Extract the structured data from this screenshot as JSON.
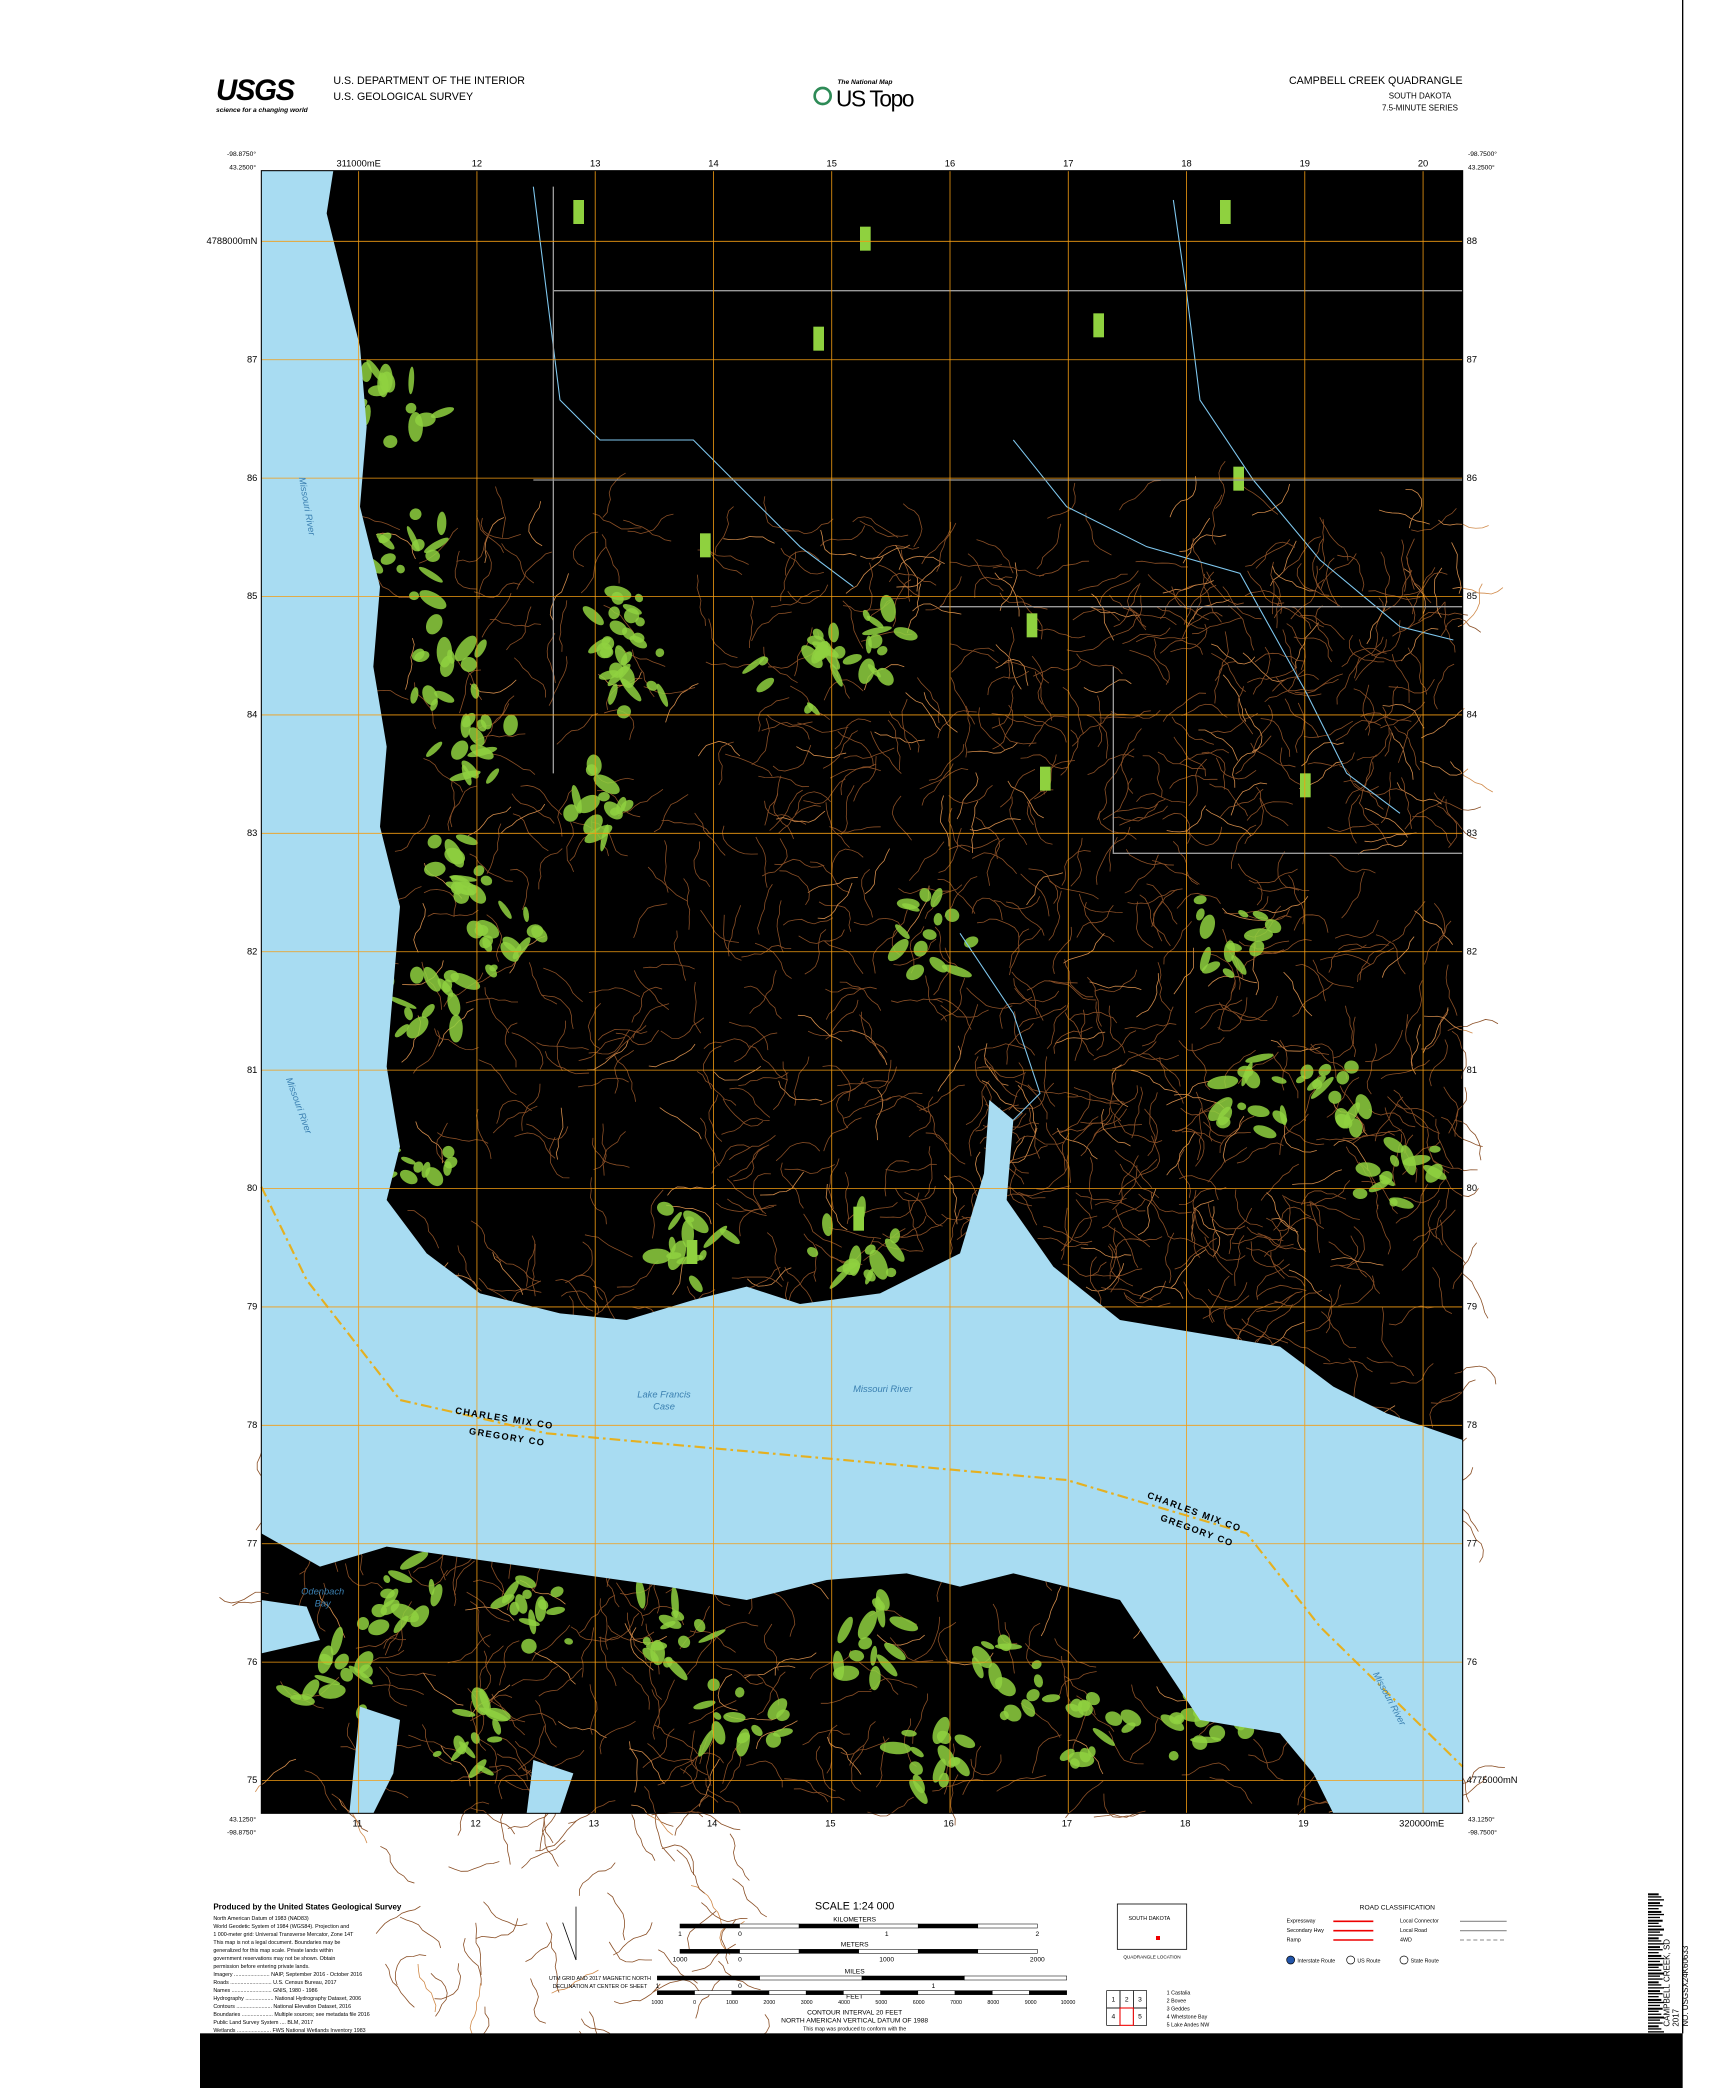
{
  "header": {
    "agency_logo": "USGS",
    "agency_tagline": "science for a changing world",
    "department": "U.S. DEPARTMENT OF THE INTERIOR",
    "survey": "U.S. GEOLOGICAL SURVEY",
    "product_kicker": "The National Map",
    "product": "US Topo",
    "quadrangle": "CAMPBELL CREEK QUADRANGLE",
    "state": "SOUTH DAKOTA",
    "series": "7.5-MINUTE SERIES"
  },
  "corners": {
    "nw_lon": "-98.8750°",
    "nw_lat": "43.2500°",
    "ne_lon": "-98.7500°",
    "ne_lat": "43.2500°",
    "sw_lon": "-98.8750°",
    "sw_lat": "43.1250°",
    "se_lon": "-98.7500°",
    "se_lat": "43.1250°"
  },
  "grid": {
    "top_eastings": [
      "311000mE",
      "12",
      "13",
      "14",
      "15",
      "16",
      "17",
      "18",
      "19",
      "20"
    ],
    "bottom_eastings": [
      "11",
      "12",
      "13",
      "14",
      "15",
      "16",
      "17",
      "18",
      "19",
      "320000mE"
    ],
    "left_northings": [
      "4788000mN",
      "87",
      "86",
      "85",
      "84",
      "83",
      "82",
      "81",
      "80",
      "79",
      "78",
      "77",
      "76",
      "75"
    ],
    "right_northings": [
      "88",
      "87",
      "86",
      "85",
      "84",
      "83",
      "82",
      "81",
      "80",
      "79",
      "78",
      "77",
      "76",
      "4775000mN"
    ]
  },
  "labels": {
    "river_north": "Missouri River",
    "river_west": "Missouri River",
    "lake": [
      "Lake Francis",
      "Case"
    ],
    "river_lake": "Missouri River",
    "county_north_west": "CHARLES MIX CO",
    "county_south_west": "GREGORY CO",
    "county_north_east": "CHARLES MIX CO",
    "county_south_east": "GREGORY CO",
    "bay": [
      "Odenbach",
      "Bay"
    ],
    "river_east": "Missouri River"
  },
  "footer": {
    "producer": "Produced by the United States Geological Survey",
    "credits": [
      "North American Datum of 1983 (NAD83)",
      "World Geodetic System of 1984 (WGS84). Projection and",
      "1 000-meter grid: Universal Transverse Mercator, Zone 14T",
      "This map is not a legal document. Boundaries may be",
      "generalized for this map scale. Private lands within",
      "government reservations may not be shown. Obtain",
      "permission before entering private lands.",
      "Imagery ........................ NAIP, September 2016 - October 2016",
      "Roads ............................ U.S. Census Bureau, 2017",
      "Names ........................... GNIS, 1980 - 1986",
      "Hydrography ................... National Hydrography Dataset, 2006",
      "Contours ........................ National Elevation Dataset, 2016",
      "Boundaries ..................... Multiple sources; see metadata file 2016",
      "Public Land Survey System .... BLM, 2017",
      "Wetlands ....................... FWS National Wetlands Inventory 1983"
    ],
    "declination": [
      "UTM GRID AND 2017 MAGNETIC NORTH",
      "DECLINATION AT CENTER OF SHEET"
    ],
    "scale": "SCALE 1:24 000",
    "km_title": "KILOMETERS",
    "km": [
      "1",
      "0",
      "1",
      "2"
    ],
    "m_title": "METERS",
    "m": [
      "1000",
      "0",
      "1000",
      "2000"
    ],
    "mi_title": "MILES",
    "mi": [
      "1",
      "0",
      "1"
    ],
    "ft_title": "FEET",
    "ft": [
      "1000",
      "0",
      "1000",
      "2000",
      "3000",
      "4000",
      "5000",
      "6000",
      "7000",
      "8000",
      "9000",
      "10000"
    ],
    "contour": [
      "CONTOUR INTERVAL 20 FEET",
      "NORTH AMERICAN VERTICAL DATUM OF 1988"
    ],
    "grid_note": "This map was produced to conform with the",
    "locator_state": "SOUTH DAKOTA",
    "locator_caption": "QUADRANGLE LOCATION",
    "adjoining_cells": [
      "1",
      "2",
      "3",
      "4",
      "5"
    ],
    "adjoining": [
      "1 Castalia",
      "2 Bovee",
      "3 Geddes",
      "4 Whetstone Bay",
      "5 Lake Andes NW"
    ],
    "road_title": "ROAD CLASSIFICATION",
    "roads_left": [
      "Expressway",
      "Secondary Hwy",
      "Ramp"
    ],
    "roads_right": [
      "Local Connector",
      "Local Road",
      "4WD"
    ],
    "shields": [
      "Interstate Route",
      "US Route",
      "State Route"
    ],
    "barcode": [
      "CAMPBELL CREEK, SD",
      "2017",
      "NO. USGSX24K60633"
    ]
  }
}
